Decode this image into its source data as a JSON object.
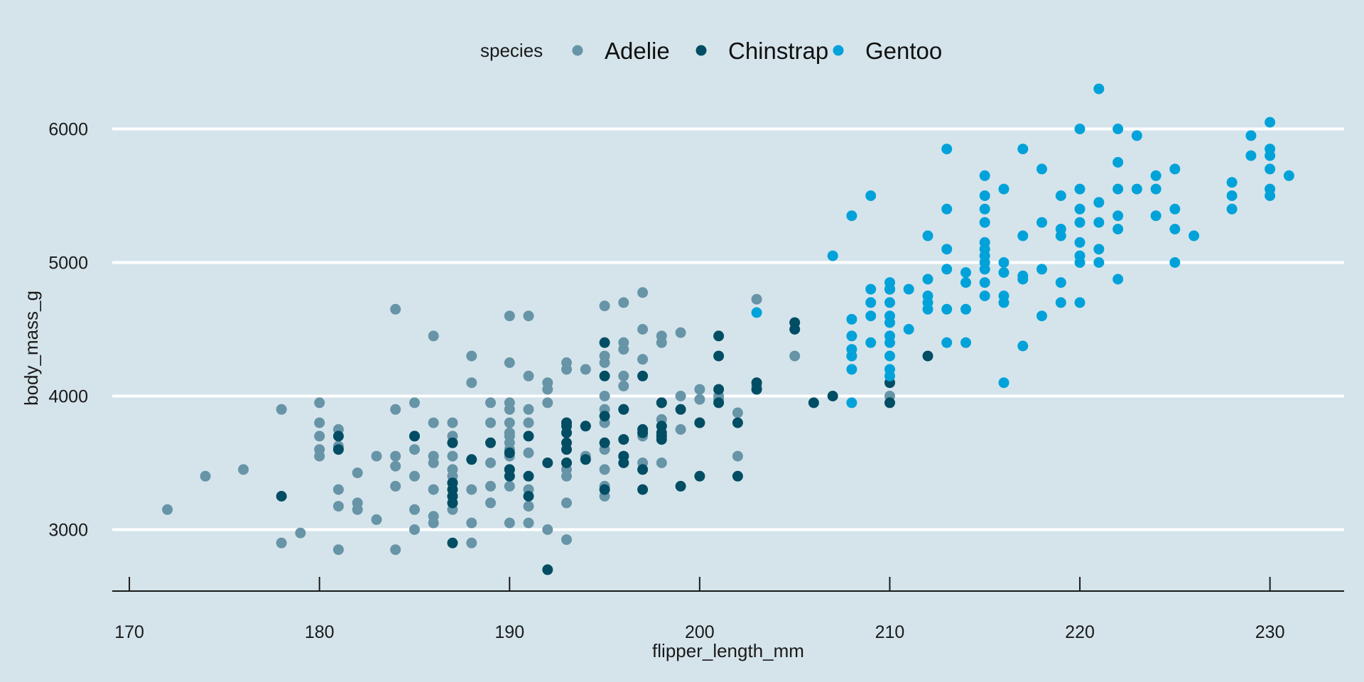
{
  "chart_data": {
    "type": "scatter",
    "title": "",
    "xlabel": "flipper_length_mm",
    "ylabel": "body_mass_g",
    "xlim": [
      169.1,
      233.9
    ],
    "ylim": [
      2540,
      6460
    ],
    "x_ticks": [
      170,
      180,
      190,
      200,
      210,
      220,
      230
    ],
    "y_ticks": [
      3000,
      4000,
      5000,
      6000
    ],
    "grid": "horizontal major lines",
    "legend": {
      "title": "species",
      "position": "top"
    },
    "colors": {
      "background": "#d5e4eb",
      "grid": "#ffffff",
      "axis": "#1a1a1a"
    },
    "series": [
      {
        "name": "Adelie",
        "color": "#6794a7",
        "points": [
          [
            172,
            3150
          ],
          [
            174,
            3400
          ],
          [
            176,
            3450
          ],
          [
            178,
            3900
          ],
          [
            178,
            2900
          ],
          [
            179,
            2975
          ],
          [
            180,
            3950
          ],
          [
            180,
            3800
          ],
          [
            180,
            3700
          ],
          [
            180,
            3600
          ],
          [
            180,
            3550
          ],
          [
            181,
            3750
          ],
          [
            181,
            3625
          ],
          [
            181,
            3300
          ],
          [
            181,
            3175
          ],
          [
            181,
            2850
          ],
          [
            182,
            3425
          ],
          [
            182,
            3200
          ],
          [
            182,
            3150
          ],
          [
            183,
            3550
          ],
          [
            183,
            3075
          ],
          [
            184,
            4650
          ],
          [
            184,
            3900
          ],
          [
            184,
            3550
          ],
          [
            184,
            3475
          ],
          [
            184,
            3325
          ],
          [
            184,
            2850
          ],
          [
            185,
            3950
          ],
          [
            185,
            3700
          ],
          [
            185,
            3600
          ],
          [
            185,
            3400
          ],
          [
            185,
            3150
          ],
          [
            185,
            3000
          ],
          [
            186,
            4450
          ],
          [
            186,
            3800
          ],
          [
            186,
            3550
          ],
          [
            186,
            3500
          ],
          [
            186,
            3300
          ],
          [
            186,
            3100
          ],
          [
            186,
            3050
          ],
          [
            187,
            3800
          ],
          [
            187,
            3700
          ],
          [
            187,
            3650
          ],
          [
            187,
            3550
          ],
          [
            187,
            3450
          ],
          [
            187,
            3400
          ],
          [
            187,
            3350
          ],
          [
            187,
            3250
          ],
          [
            187,
            3150
          ],
          [
            188,
            4300
          ],
          [
            188,
            4100
          ],
          [
            188,
            3300
          ],
          [
            188,
            3050
          ],
          [
            188,
            2900
          ],
          [
            189,
            3950
          ],
          [
            189,
            3800
          ],
          [
            189,
            3500
          ],
          [
            189,
            3325
          ],
          [
            189,
            3200
          ],
          [
            190,
            4600
          ],
          [
            190,
            4250
          ],
          [
            190,
            3950
          ],
          [
            190,
            3900
          ],
          [
            190,
            3800
          ],
          [
            190,
            3725
          ],
          [
            190,
            3700
          ],
          [
            190,
            3650
          ],
          [
            190,
            3600
          ],
          [
            190,
            3550
          ],
          [
            190,
            3450
          ],
          [
            190,
            3400
          ],
          [
            190,
            3325
          ],
          [
            190,
            3050
          ],
          [
            191,
            4600
          ],
          [
            191,
            4150
          ],
          [
            191,
            3900
          ],
          [
            191,
            3800
          ],
          [
            191,
            3575
          ],
          [
            191,
            3300
          ],
          [
            191,
            3175
          ],
          [
            191,
            3050
          ],
          [
            192,
            4100
          ],
          [
            192,
            4050
          ],
          [
            192,
            3950
          ],
          [
            192,
            3000
          ],
          [
            193,
            4250
          ],
          [
            193,
            4200
          ],
          [
            193,
            3800
          ],
          [
            193,
            3725
          ],
          [
            193,
            3500
          ],
          [
            193,
            3450
          ],
          [
            193,
            3400
          ],
          [
            193,
            3200
          ],
          [
            193,
            2925
          ],
          [
            194,
            4200
          ],
          [
            194,
            3775
          ],
          [
            194,
            3550
          ],
          [
            195,
            4675
          ],
          [
            195,
            4300
          ],
          [
            195,
            4250
          ],
          [
            195,
            4000
          ],
          [
            195,
            3900
          ],
          [
            195,
            3800
          ],
          [
            195,
            3600
          ],
          [
            195,
            3450
          ],
          [
            195,
            3325
          ],
          [
            195,
            3250
          ],
          [
            196,
            4700
          ],
          [
            196,
            4400
          ],
          [
            196,
            4350
          ],
          [
            196,
            4150
          ],
          [
            196,
            4075
          ],
          [
            196,
            3900
          ],
          [
            196,
            3675
          ],
          [
            196,
            3550
          ],
          [
            197,
            4775
          ],
          [
            197,
            4500
          ],
          [
            197,
            4275
          ],
          [
            197,
            3700
          ],
          [
            197,
            3500
          ],
          [
            198,
            4450
          ],
          [
            198,
            4400
          ],
          [
            198,
            3950
          ],
          [
            198,
            3825
          ],
          [
            198,
            3775
          ],
          [
            198,
            3500
          ],
          [
            199,
            4475
          ],
          [
            199,
            4000
          ],
          [
            199,
            3750
          ],
          [
            200,
            4050
          ],
          [
            200,
            3975
          ],
          [
            200,
            3800
          ],
          [
            201,
            4000
          ],
          [
            201,
            3975
          ],
          [
            202,
            3875
          ],
          [
            202,
            3550
          ],
          [
            203,
            4725
          ],
          [
            203,
            4075
          ],
          [
            205,
            4300
          ],
          [
            208,
            4300
          ],
          [
            210,
            4000
          ]
        ]
      },
      {
        "name": "Chinstrap",
        "color": "#014d64",
        "points": [
          [
            178,
            3250
          ],
          [
            181,
            3700
          ],
          [
            181,
            3600
          ],
          [
            185,
            3700
          ],
          [
            187,
            3650
          ],
          [
            187,
            3350
          ],
          [
            187,
            3300
          ],
          [
            187,
            3250
          ],
          [
            187,
            3200
          ],
          [
            187,
            2900
          ],
          [
            188,
            3525
          ],
          [
            189,
            3650
          ],
          [
            190,
            3575
          ],
          [
            190,
            3450
          ],
          [
            190,
            3400
          ],
          [
            191,
            3700
          ],
          [
            191,
            3400
          ],
          [
            191,
            3250
          ],
          [
            192,
            2700
          ],
          [
            192,
            3500
          ],
          [
            193,
            3800
          ],
          [
            193,
            3775
          ],
          [
            193,
            3725
          ],
          [
            193,
            3650
          ],
          [
            193,
            3600
          ],
          [
            193,
            3500
          ],
          [
            194,
            3775
          ],
          [
            194,
            3525
          ],
          [
            195,
            4400
          ],
          [
            195,
            4150
          ],
          [
            195,
            3850
          ],
          [
            195,
            3650
          ],
          [
            195,
            3300
          ],
          [
            196,
            3900
          ],
          [
            196,
            3675
          ],
          [
            196,
            3550
          ],
          [
            196,
            3500
          ],
          [
            197,
            4150
          ],
          [
            197,
            3750
          ],
          [
            197,
            3725
          ],
          [
            197,
            3450
          ],
          [
            197,
            3300
          ],
          [
            198,
            3950
          ],
          [
            198,
            3775
          ],
          [
            198,
            3725
          ],
          [
            198,
            3700
          ],
          [
            198,
            3675
          ],
          [
            199,
            3900
          ],
          [
            199,
            3325
          ],
          [
            200,
            3800
          ],
          [
            200,
            3400
          ],
          [
            201,
            4450
          ],
          [
            201,
            4300
          ],
          [
            201,
            4050
          ],
          [
            201,
            3950
          ],
          [
            202,
            3800
          ],
          [
            202,
            3400
          ],
          [
            203,
            4100
          ],
          [
            203,
            4050
          ],
          [
            205,
            4550
          ],
          [
            205,
            4500
          ],
          [
            206,
            3950
          ],
          [
            207,
            4000
          ],
          [
            210,
            4800
          ],
          [
            210,
            4100
          ],
          [
            210,
            3950
          ],
          [
            212,
            4300
          ]
        ]
      },
      {
        "name": "Gentoo",
        "color": "#01a2d9",
        "points": [
          [
            203,
            4625
          ],
          [
            207,
            5050
          ],
          [
            208,
            5350
          ],
          [
            208,
            4575
          ],
          [
            208,
            4450
          ],
          [
            208,
            4350
          ],
          [
            208,
            4300
          ],
          [
            208,
            4200
          ],
          [
            208,
            3950
          ],
          [
            209,
            5500
          ],
          [
            209,
            4800
          ],
          [
            209,
            4700
          ],
          [
            209,
            4600
          ],
          [
            209,
            4400
          ],
          [
            210,
            4850
          ],
          [
            210,
            4800
          ],
          [
            210,
            4700
          ],
          [
            210,
            4600
          ],
          [
            210,
            4550
          ],
          [
            210,
            4450
          ],
          [
            210,
            4400
          ],
          [
            210,
            4300
          ],
          [
            210,
            4200
          ],
          [
            210,
            4150
          ],
          [
            211,
            4800
          ],
          [
            211,
            4500
          ],
          [
            212,
            5200
          ],
          [
            212,
            4875
          ],
          [
            212,
            4750
          ],
          [
            212,
            4700
          ],
          [
            212,
            4650
          ],
          [
            213,
            5850
          ],
          [
            213,
            5400
          ],
          [
            213,
            5100
          ],
          [
            213,
            4950
          ],
          [
            213,
            4650
          ],
          [
            213,
            4400
          ],
          [
            214,
            4925
          ],
          [
            214,
            4850
          ],
          [
            214,
            4650
          ],
          [
            214,
            4400
          ],
          [
            215,
            5650
          ],
          [
            215,
            5500
          ],
          [
            215,
            5400
          ],
          [
            215,
            5300
          ],
          [
            215,
            5150
          ],
          [
            215,
            5100
          ],
          [
            215,
            5050
          ],
          [
            215,
            5000
          ],
          [
            215,
            4950
          ],
          [
            215,
            4850
          ],
          [
            215,
            4750
          ],
          [
            216,
            5550
          ],
          [
            216,
            5000
          ],
          [
            216,
            4925
          ],
          [
            216,
            4750
          ],
          [
            216,
            4700
          ],
          [
            216,
            4100
          ],
          [
            217,
            5850
          ],
          [
            217,
            5200
          ],
          [
            217,
            4900
          ],
          [
            217,
            4875
          ],
          [
            217,
            4375
          ],
          [
            218,
            5700
          ],
          [
            218,
            5300
          ],
          [
            218,
            4950
          ],
          [
            218,
            4600
          ],
          [
            219,
            5500
          ],
          [
            219,
            5250
          ],
          [
            219,
            5200
          ],
          [
            219,
            4850
          ],
          [
            219,
            4700
          ],
          [
            220,
            6000
          ],
          [
            220,
            5550
          ],
          [
            220,
            5400
          ],
          [
            220,
            5300
          ],
          [
            220,
            5150
          ],
          [
            220,
            5050
          ],
          [
            220,
            5000
          ],
          [
            220,
            4700
          ],
          [
            221,
            6300
          ],
          [
            221,
            5450
          ],
          [
            221,
            5300
          ],
          [
            221,
            5100
          ],
          [
            221,
            5000
          ],
          [
            222,
            6000
          ],
          [
            222,
            5750
          ],
          [
            222,
            5550
          ],
          [
            222,
            5350
          ],
          [
            222,
            5250
          ],
          [
            222,
            4875
          ],
          [
            223,
            5950
          ],
          [
            223,
            5550
          ],
          [
            224,
            5650
          ],
          [
            224,
            5550
          ],
          [
            224,
            5350
          ],
          [
            225,
            5700
          ],
          [
            225,
            5400
          ],
          [
            225,
            5250
          ],
          [
            225,
            5000
          ],
          [
            226,
            5200
          ],
          [
            228,
            5600
          ],
          [
            228,
            5500
          ],
          [
            228,
            5400
          ],
          [
            229,
            5950
          ],
          [
            229,
            5800
          ],
          [
            230,
            6050
          ],
          [
            230,
            5850
          ],
          [
            230,
            5800
          ],
          [
            230,
            5700
          ],
          [
            230,
            5550
          ],
          [
            230,
            5500
          ],
          [
            231,
            5650
          ]
        ]
      }
    ]
  }
}
